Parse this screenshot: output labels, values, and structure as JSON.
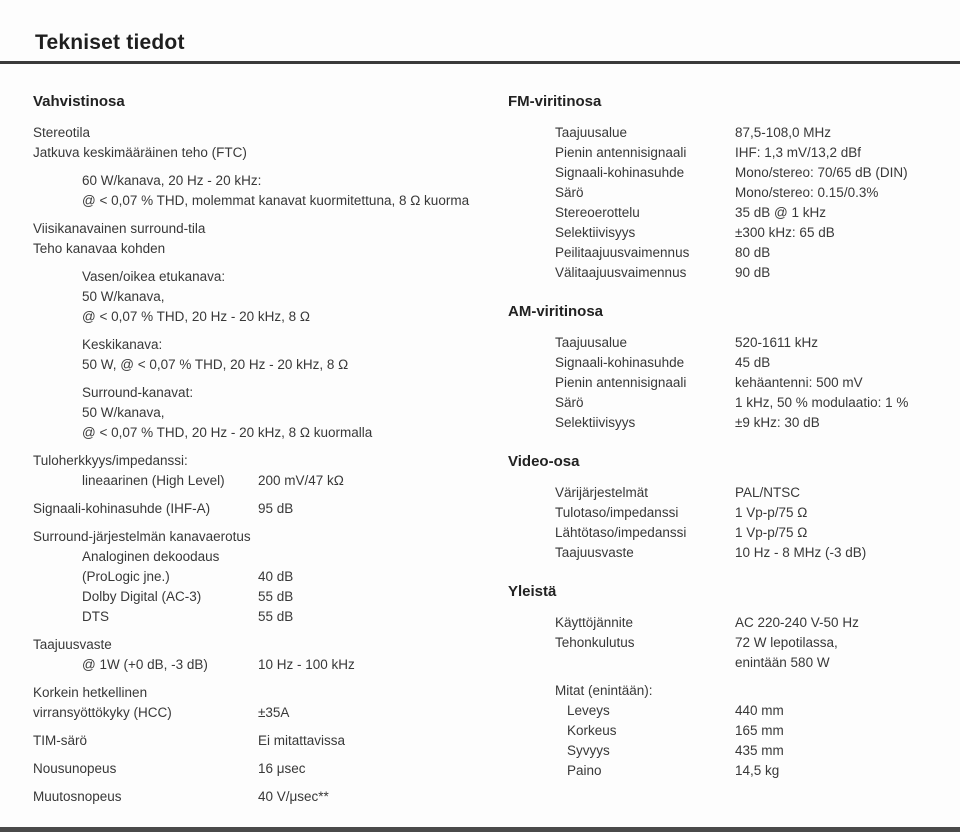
{
  "title": "Tekniset tiedot",
  "left": {
    "heading": "Vahvistinosa",
    "groups": [
      {
        "rows": [
          {
            "label": "Stereotila",
            "indent": 0
          },
          {
            "label": "Jatkuva keskimääräinen teho (FTC)",
            "indent": 0
          }
        ]
      },
      {
        "rows": [
          {
            "label": "60 W/kanava, 20 Hz - 20 kHz:",
            "indent": 1
          },
          {
            "label": "@ < 0,07 % THD, molemmat kanavat kuormitettuna, 8 Ω kuorma",
            "indent": 1
          }
        ]
      },
      {
        "rows": [
          {
            "label": "Viisikanavainen surround-tila",
            "indent": 0
          },
          {
            "label": "Teho kanavaa kohden",
            "indent": 0
          }
        ]
      },
      {
        "rows": [
          {
            "label": "Vasen/oikea etukanava:",
            "indent": 1
          },
          {
            "label": "50 W/kanava,",
            "indent": 1
          },
          {
            "label": "@ < 0,07 % THD, 20 Hz - 20 kHz, 8 Ω",
            "indent": 1
          }
        ]
      },
      {
        "rows": [
          {
            "label": "Keskikanava:",
            "indent": 1
          },
          {
            "label": "50 W, @ < 0,07 % THD, 20 Hz - 20 kHz, 8 Ω",
            "indent": 1
          }
        ]
      },
      {
        "rows": [
          {
            "label": "Surround-kanavat:",
            "indent": 1
          },
          {
            "label": "50 W/kanava,",
            "indent": 1
          },
          {
            "label": "@ < 0,07 % THD, 20 Hz - 20 kHz, 8 Ω kuormalla",
            "indent": 1
          }
        ]
      },
      {
        "rows": [
          {
            "label": "Tuloherkkyys/impedanssi:",
            "indent": 0
          },
          {
            "label": "lineaarinen (High Level)",
            "value": "200 mV/47 kΩ",
            "indent": 1
          }
        ]
      },
      {
        "rows": [
          {
            "label": "Signaali-kohinasuhde (IHF-A)",
            "value": "95 dB",
            "indent": 0
          }
        ]
      },
      {
        "rows": [
          {
            "label": "Surround-järjestelmän kanavaerotus",
            "indent": 0
          },
          {
            "label": "Analoginen dekoodaus",
            "indent": 1
          },
          {
            "label": "(ProLogic jne.)",
            "value": "40 dB",
            "indent": 1
          },
          {
            "label": "Dolby Digital (AC-3)",
            "value": "55 dB",
            "indent": 1
          },
          {
            "label": "DTS",
            "value": "55 dB",
            "indent": 1
          }
        ]
      },
      {
        "rows": [
          {
            "label": "Taajuusvaste",
            "indent": 0
          },
          {
            "label": "@ 1W (+0 dB, -3 dB)",
            "value": "10 Hz - 100 kHz",
            "indent": 1
          }
        ]
      },
      {
        "rows": [
          {
            "label": "Korkein hetkellinen",
            "indent": 0
          },
          {
            "label": "virransyöttökyky (HCC)",
            "value": "±35A",
            "indent": 0
          }
        ]
      },
      {
        "rows": [
          {
            "label": "TIM-särö",
            "value": "Ei mitattavissa",
            "indent": 0
          }
        ]
      },
      {
        "rows": [
          {
            "label": "Nousunopeus",
            "value": "16 μsec",
            "indent": 0
          }
        ]
      },
      {
        "rows": [
          {
            "label": "Muutosnopeus",
            "value": "40 V/μsec**",
            "indent": 0
          }
        ]
      }
    ]
  },
  "right": {
    "sections": [
      {
        "heading": "FM-viritinosa",
        "groups": [
          {
            "rows": [
              {
                "label": "Taajuusalue",
                "value": "87,5-108,0 MHz",
                "indent": 1
              },
              {
                "label": "Pienin antennisignaali",
                "value": "IHF: 1,3 mV/13,2 dBf",
                "indent": 1
              },
              {
                "label": "Signaali-kohinasuhde",
                "value": "Mono/stereo: 70/65 dB (DIN)",
                "indent": 1
              },
              {
                "label": "Särö",
                "value": "Mono/stereo: 0.15/0.3%",
                "indent": 1
              },
              {
                "label": "Stereoerottelu",
                "value": "35 dB @ 1 kHz",
                "indent": 1
              },
              {
                "label": "Selektiivisyys",
                "value": "±300 kHz: 65 dB",
                "indent": 1
              },
              {
                "label": "Peilitaajuusvaimennus",
                "value": "80 dB",
                "indent": 1
              },
              {
                "label": "Välitaajuusvaimennus",
                "value": "90 dB",
                "indent": 1
              }
            ]
          }
        ]
      },
      {
        "heading": "AM-viritinosa",
        "groups": [
          {
            "rows": [
              {
                "label": "Taajuusalue",
                "value": "520-1611 kHz",
                "indent": 1
              },
              {
                "label": "Signaali-kohinasuhde",
                "value": "45 dB",
                "indent": 1
              },
              {
                "label": "Pienin antennisignaali",
                "value": "kehäantenni: 500 mV",
                "indent": 1
              },
              {
                "label": "Särö",
                "value": "1 kHz, 50 % modulaatio: 1 %",
                "indent": 1
              },
              {
                "label": "Selektiivisyys",
                "value": "±9 kHz: 30 dB",
                "indent": 1
              }
            ]
          }
        ]
      },
      {
        "heading": "Video-osa",
        "groups": [
          {
            "rows": [
              {
                "label": "Värijärjestelmät",
                "value": "PAL/NTSC",
                "indent": 1
              },
              {
                "label": "Tulotaso/impedanssi",
                "value": "1 Vp-p/75 Ω",
                "indent": 1
              },
              {
                "label": "Lähtötaso/impedanssi",
                "value": "1 Vp-p/75 Ω",
                "indent": 1
              },
              {
                "label": "Taajuusvaste",
                "value": "10 Hz - 8 MHz (-3 dB)",
                "indent": 1
              }
            ]
          }
        ]
      },
      {
        "heading": "Yleistä",
        "groups": [
          {
            "rows": [
              {
                "label": "Käyttöjännite",
                "value": "AC 220-240 V-50 Hz",
                "indent": 1
              },
              {
                "label": "Tehonkulutus",
                "value": "72 W lepotilassa,",
                "indent": 1
              },
              {
                "label": "",
                "value": "enintään 580 W",
                "indent": 1
              }
            ]
          },
          {
            "rows": [
              {
                "label": "Mitat (enintään):",
                "indent": 1
              },
              {
                "label": "Leveys",
                "value": "440 mm",
                "indent": 2
              },
              {
                "label": "Korkeus",
                "value": "165 mm",
                "indent": 2
              },
              {
                "label": "Syvyys",
                "value": "435 mm",
                "indent": 2
              },
              {
                "label": "Paino",
                "value": "14,5 kg",
                "indent": 2
              }
            ]
          }
        ]
      }
    ]
  }
}
